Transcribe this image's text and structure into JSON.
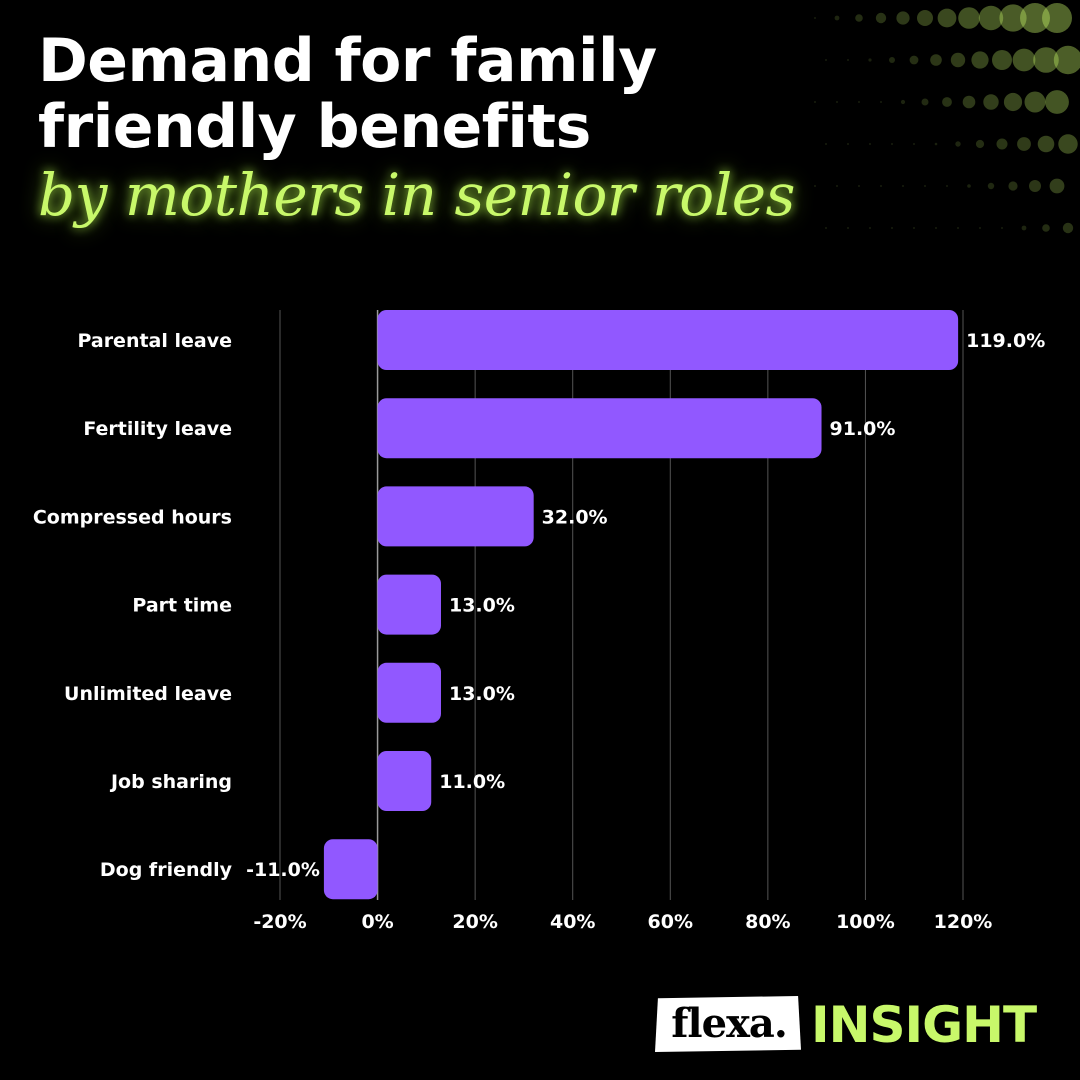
{
  "header": {
    "title_line1": "Demand for family",
    "title_line2": "friendly benefits",
    "subtitle": "by mothers in senior roles"
  },
  "colors": {
    "background": "#000000",
    "bar": "#9158ff",
    "accent": "#c8f86a",
    "text": "#ffffff",
    "gridline": "#555555"
  },
  "chart_data": {
    "type": "bar",
    "orientation": "horizontal",
    "title": "Demand for family friendly benefits",
    "subtitle": "by mothers in senior roles",
    "categories": [
      "Parental leave",
      "Fertility leave",
      "Compressed hours",
      "Part time",
      "Unlimited leave",
      "Job sharing",
      "Dog friendly"
    ],
    "values": [
      119.0,
      91.0,
      32.0,
      13.0,
      13.0,
      11.0,
      -11.0
    ],
    "data_labels": [
      "119.0%",
      "91.0%",
      "32.0%",
      "13.0%",
      "13.0%",
      "11.0%",
      "-11.0%"
    ],
    "xlim": [
      -20,
      120
    ],
    "xticks": [
      -20,
      0,
      20,
      40,
      60,
      80,
      100,
      120
    ],
    "xtick_labels": [
      "-20%",
      "0%",
      "20%",
      "40%",
      "60%",
      "80%",
      "100%",
      "120%"
    ],
    "xlabel": "",
    "ylabel": "",
    "grid": true,
    "legend": "none"
  },
  "branding": {
    "logo_name": "flexa.",
    "logo_tag": "INSIGHT"
  }
}
